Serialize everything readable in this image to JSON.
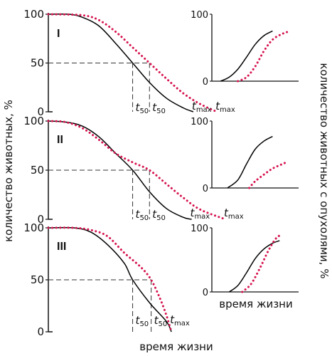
{
  "labels": {
    "y_left": "количество животных, %",
    "y_right": "количество животных с опухолями, %",
    "x_bottom": "время жизни",
    "x_inset": "время жизни",
    "t50_main": "t",
    "t50_sub": "50",
    "tmax_main": "t",
    "tmax_sub": "max"
  },
  "colors": {
    "control": "#000000",
    "exposed": "#d6144f"
  },
  "chart_data": [
    {
      "type": "line",
      "panel": "I",
      "ylabel": "количество животных, %",
      "yticks": [
        0,
        50,
        100
      ],
      "ylim": [
        0,
        100
      ],
      "xlim": [
        0,
        10
      ],
      "t50_labels": [
        "t50",
        "t50"
      ],
      "tmax_labels": [
        "tmax",
        "tmax"
      ],
      "series": [
        {
          "style": "solid",
          "points": [
            [
              0,
              100
            ],
            [
              1.2,
              100
            ],
            [
              2,
              97
            ],
            [
              3,
              88
            ],
            [
              4,
              70
            ],
            [
              5,
              50
            ],
            [
              6,
              30
            ],
            [
              7,
              14
            ],
            [
              8,
              4
            ],
            [
              8.6,
              0
            ]
          ]
        },
        {
          "style": "dotted",
          "points": [
            [
              0,
              100
            ],
            [
              2,
              99
            ],
            [
              3,
              94
            ],
            [
              4,
              82
            ],
            [
              5,
              66
            ],
            [
              6,
              50
            ],
            [
              7,
              34
            ],
            [
              8,
              19
            ],
            [
              9,
              8
            ],
            [
              10,
              0
            ]
          ]
        }
      ],
      "t50": [
        5,
        6
      ],
      "tmax": [
        8.6,
        10
      ]
    },
    {
      "type": "line",
      "panel": "II",
      "ylabel": "количество животных, %",
      "yticks": [
        0,
        50,
        100
      ],
      "ylim": [
        0,
        100
      ],
      "xlim": [
        0,
        10
      ],
      "t50_labels": [
        "t50",
        "t50"
      ],
      "tmax_labels": [
        "tmax",
        "tmax"
      ],
      "series": [
        {
          "style": "solid",
          "points": [
            [
              0,
              100
            ],
            [
              1,
              99
            ],
            [
              2,
              95
            ],
            [
              3,
              84
            ],
            [
              4,
              67
            ],
            [
              5,
              50
            ],
            [
              6,
              28
            ],
            [
              7,
              11
            ],
            [
              8,
              2
            ],
            [
              8.5,
              0
            ]
          ]
        },
        {
          "style": "dotted",
          "points": [
            [
              0,
              100
            ],
            [
              1,
              99
            ],
            [
              2,
              93
            ],
            [
              3,
              81
            ],
            [
              4,
              67
            ],
            [
              5,
              58
            ],
            [
              6,
              50
            ],
            [
              7,
              36
            ],
            [
              8,
              22
            ],
            [
              9,
              10
            ],
            [
              10.5,
              0
            ]
          ]
        }
      ],
      "t50": [
        5,
        6
      ],
      "tmax": [
        8.5,
        10.5
      ]
    },
    {
      "type": "line",
      "panel": "III",
      "ylabel": "количество животных, %",
      "yticks": [
        0,
        50,
        100
      ],
      "ylim": [
        0,
        100
      ],
      "xlim": [
        0,
        10
      ],
      "t50_labels": [
        "t50",
        "t50"
      ],
      "tmax_labels": [
        "tmax"
      ],
      "series": [
        {
          "style": "solid",
          "points": [
            [
              0,
              100
            ],
            [
              1.5,
              100
            ],
            [
              2.5,
              96
            ],
            [
              3.5,
              84
            ],
            [
              4.5,
              66
            ],
            [
              5,
              50
            ],
            [
              6,
              28
            ],
            [
              7,
              10
            ],
            [
              7.3,
              0
            ]
          ]
        },
        {
          "style": "dotted",
          "points": [
            [
              0,
              100
            ],
            [
              1.5,
              100
            ],
            [
              2.5,
              98
            ],
            [
              3.5,
              92
            ],
            [
              4.5,
              76
            ],
            [
              5.5,
              62
            ],
            [
              6.1,
              50
            ],
            [
              6.6,
              33
            ],
            [
              7,
              16
            ],
            [
              7.3,
              0
            ]
          ]
        }
      ],
      "t50": [
        5,
        6.1
      ],
      "tmax": [
        7.3
      ]
    },
    {
      "type": "line",
      "panel": "I-inset",
      "ylabel": "количество животных с опухолями, %",
      "yticks": [
        0,
        100
      ],
      "ylim": [
        0,
        100
      ],
      "xlim": [
        0,
        10
      ],
      "series": [
        {
          "style": "solid",
          "points": [
            [
              1,
              0
            ],
            [
              2,
              6
            ],
            [
              3,
              18
            ],
            [
              4,
              36
            ],
            [
              5,
              55
            ],
            [
              6,
              68
            ],
            [
              7,
              75
            ]
          ]
        },
        {
          "style": "dotted",
          "points": [
            [
              3,
              0
            ],
            [
              4,
              6
            ],
            [
              5,
              22
            ],
            [
              6,
              45
            ],
            [
              7,
              62
            ],
            [
              8,
              70
            ],
            [
              8.8,
              74
            ]
          ]
        }
      ]
    },
    {
      "type": "line",
      "panel": "II-inset",
      "ylabel": "количество животных с опухолями, %",
      "yticks": [
        0,
        100
      ],
      "ylim": [
        0,
        100
      ],
      "xlim": [
        0,
        10
      ],
      "series": [
        {
          "style": "solid",
          "points": [
            [
              1.8,
              0
            ],
            [
              3,
              12
            ],
            [
              4,
              36
            ],
            [
              5,
              58
            ],
            [
              6,
              70
            ],
            [
              7,
              77
            ]
          ]
        },
        {
          "style": "dotted",
          "points": [
            [
              4.3,
              0
            ],
            [
              5,
              10
            ],
            [
              6,
              20
            ],
            [
              7,
              29
            ],
            [
              8,
              35
            ],
            [
              8.7,
              39
            ]
          ]
        }
      ]
    },
    {
      "type": "line",
      "panel": "III-inset",
      "ylabel": "количество животных с опухолями, %",
      "xlabel": "время жизни",
      "yticks": [
        0,
        100
      ],
      "ylim": [
        0,
        100
      ],
      "xlim": [
        0,
        10
      ],
      "series": [
        {
          "style": "solid",
          "points": [
            [
              2,
              0
            ],
            [
              3,
              10
            ],
            [
              4,
              30
            ],
            [
              5,
              52
            ],
            [
              6,
              67
            ],
            [
              7,
              76
            ],
            [
              7.8,
              80
            ]
          ]
        },
        {
          "style": "dotted",
          "points": [
            [
              3.5,
              0
            ],
            [
              4.5,
              12
            ],
            [
              5.5,
              36
            ],
            [
              6.5,
              64
            ],
            [
              7.3,
              82
            ],
            [
              7.8,
              88
            ]
          ]
        }
      ]
    }
  ]
}
